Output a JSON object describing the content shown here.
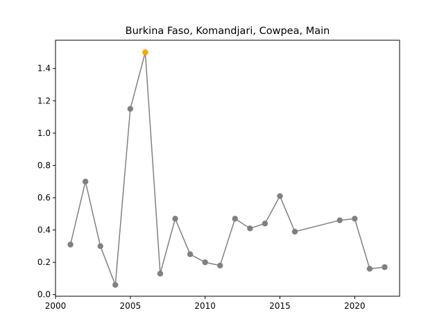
{
  "chart_data": {
    "type": "line",
    "title": "Burkina Faso, Komandjari, Cowpea, Main",
    "xlabel": "",
    "ylabel": "",
    "xlim": [
      2000,
      2023
    ],
    "ylim": [
      -0.01,
      1.575
    ],
    "x_ticks": [
      2000,
      2005,
      2010,
      2015,
      2020
    ],
    "y_ticks": [
      0.0,
      0.2,
      0.4,
      0.6,
      0.8,
      1.0,
      1.2,
      1.4
    ],
    "grid": false,
    "line_color": "#808080",
    "highlight_color": "#FFA500",
    "series": [
      {
        "x": [
          2001,
          2002,
          2003,
          2004,
          2005,
          2006,
          2007,
          2008,
          2009,
          2010,
          2011,
          2012,
          2013,
          2014,
          2015,
          2016,
          2019,
          2020,
          2021,
          2022
        ],
        "values": [
          0.31,
          0.7,
          0.3,
          0.06,
          1.15,
          1.5,
          0.13,
          0.47,
          0.25,
          0.2,
          0.18,
          0.47,
          0.41,
          0.44,
          0.61,
          0.39,
          0.46,
          0.47,
          0.16,
          0.17
        ]
      }
    ],
    "highlight": {
      "x": 2006,
      "value": 1.5
    }
  }
}
